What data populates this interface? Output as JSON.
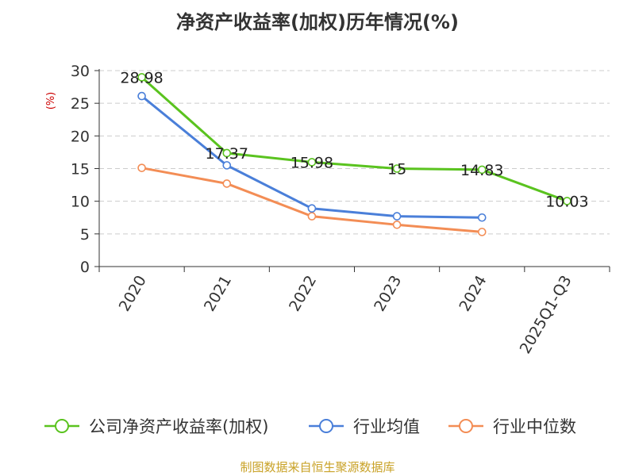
{
  "chart_data": {
    "type": "line",
    "title": "净资产收益率(加权)历年情况(%)",
    "ylabel": "(%)",
    "xlabel": "",
    "categories": [
      "2020",
      "2021",
      "2022",
      "2023",
      "2024",
      "2025Q1-Q3"
    ],
    "ylim": [
      0,
      30
    ],
    "yticks": [
      0,
      5,
      10,
      15,
      20,
      25,
      30
    ],
    "grid": true,
    "legend_position": "bottom",
    "series": [
      {
        "name": "公司净资产收益率(加权)",
        "color": "#5ac31f",
        "values": [
          28.98,
          17.37,
          15.98,
          15.0,
          14.83,
          10.03
        ],
        "labels": [
          "28.98",
          "17.37",
          "15.98",
          "15",
          "14.83",
          "10.03"
        ]
      },
      {
        "name": "行业均值",
        "color": "#4a7fd9",
        "values": [
          26.1,
          15.5,
          8.9,
          7.7,
          7.5,
          null
        ],
        "labels": null
      },
      {
        "name": "行业中位数",
        "color": "#f38d55",
        "values": [
          15.1,
          12.7,
          7.7,
          6.4,
          5.3,
          null
        ],
        "labels": null
      }
    ]
  },
  "colors": {
    "ylabel": "#cc0000",
    "source": "#c9a227",
    "axis": "#333333",
    "grid": "#cccccc"
  },
  "source_text": "制图数据来自恒生聚源数据库"
}
